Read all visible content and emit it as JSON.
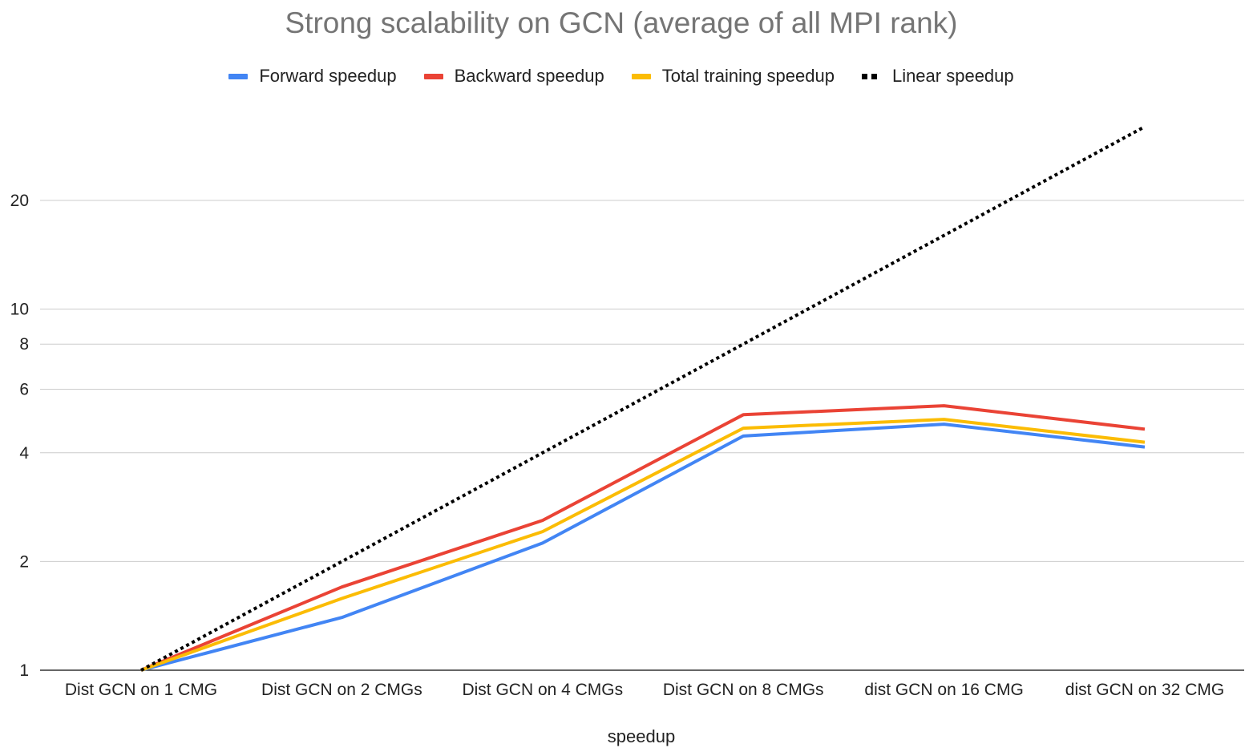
{
  "chart_data": {
    "type": "line",
    "title": "Strong scalability on GCN (average of all MPI rank)",
    "xlabel": "speedup",
    "ylabel": "",
    "y_scale": "log",
    "ylim": [
      1,
      32
    ],
    "y_ticks": [
      1,
      2,
      4,
      6,
      8,
      10,
      20
    ],
    "grid": true,
    "legend_position": "top",
    "categories": [
      "Dist GCN on 1 CMG",
      "Dist GCN on 2 CMGs",
      "Dist GCN on 4 CMGs",
      "Dist GCN on 8 CMGs",
      "dist GCN on 16 CMG",
      "dist GCN on 32 CMG"
    ],
    "series": [
      {
        "name": "Forward speedup",
        "color": "#4285F4",
        "style": "solid",
        "values": [
          1,
          1.4,
          2.25,
          4.45,
          4.8,
          4.15
        ]
      },
      {
        "name": "Backward speedup",
        "color": "#EA4335",
        "style": "solid",
        "values": [
          1,
          1.7,
          2.6,
          5.1,
          5.4,
          4.65
        ]
      },
      {
        "name": "Total training speedup",
        "color": "#FBBC04",
        "style": "solid",
        "values": [
          1,
          1.58,
          2.42,
          4.68,
          4.95,
          4.28
        ]
      },
      {
        "name": "Linear speedup",
        "color": "#000000",
        "style": "dotted",
        "values": [
          1,
          2,
          4,
          8,
          16,
          32
        ]
      }
    ]
  }
}
